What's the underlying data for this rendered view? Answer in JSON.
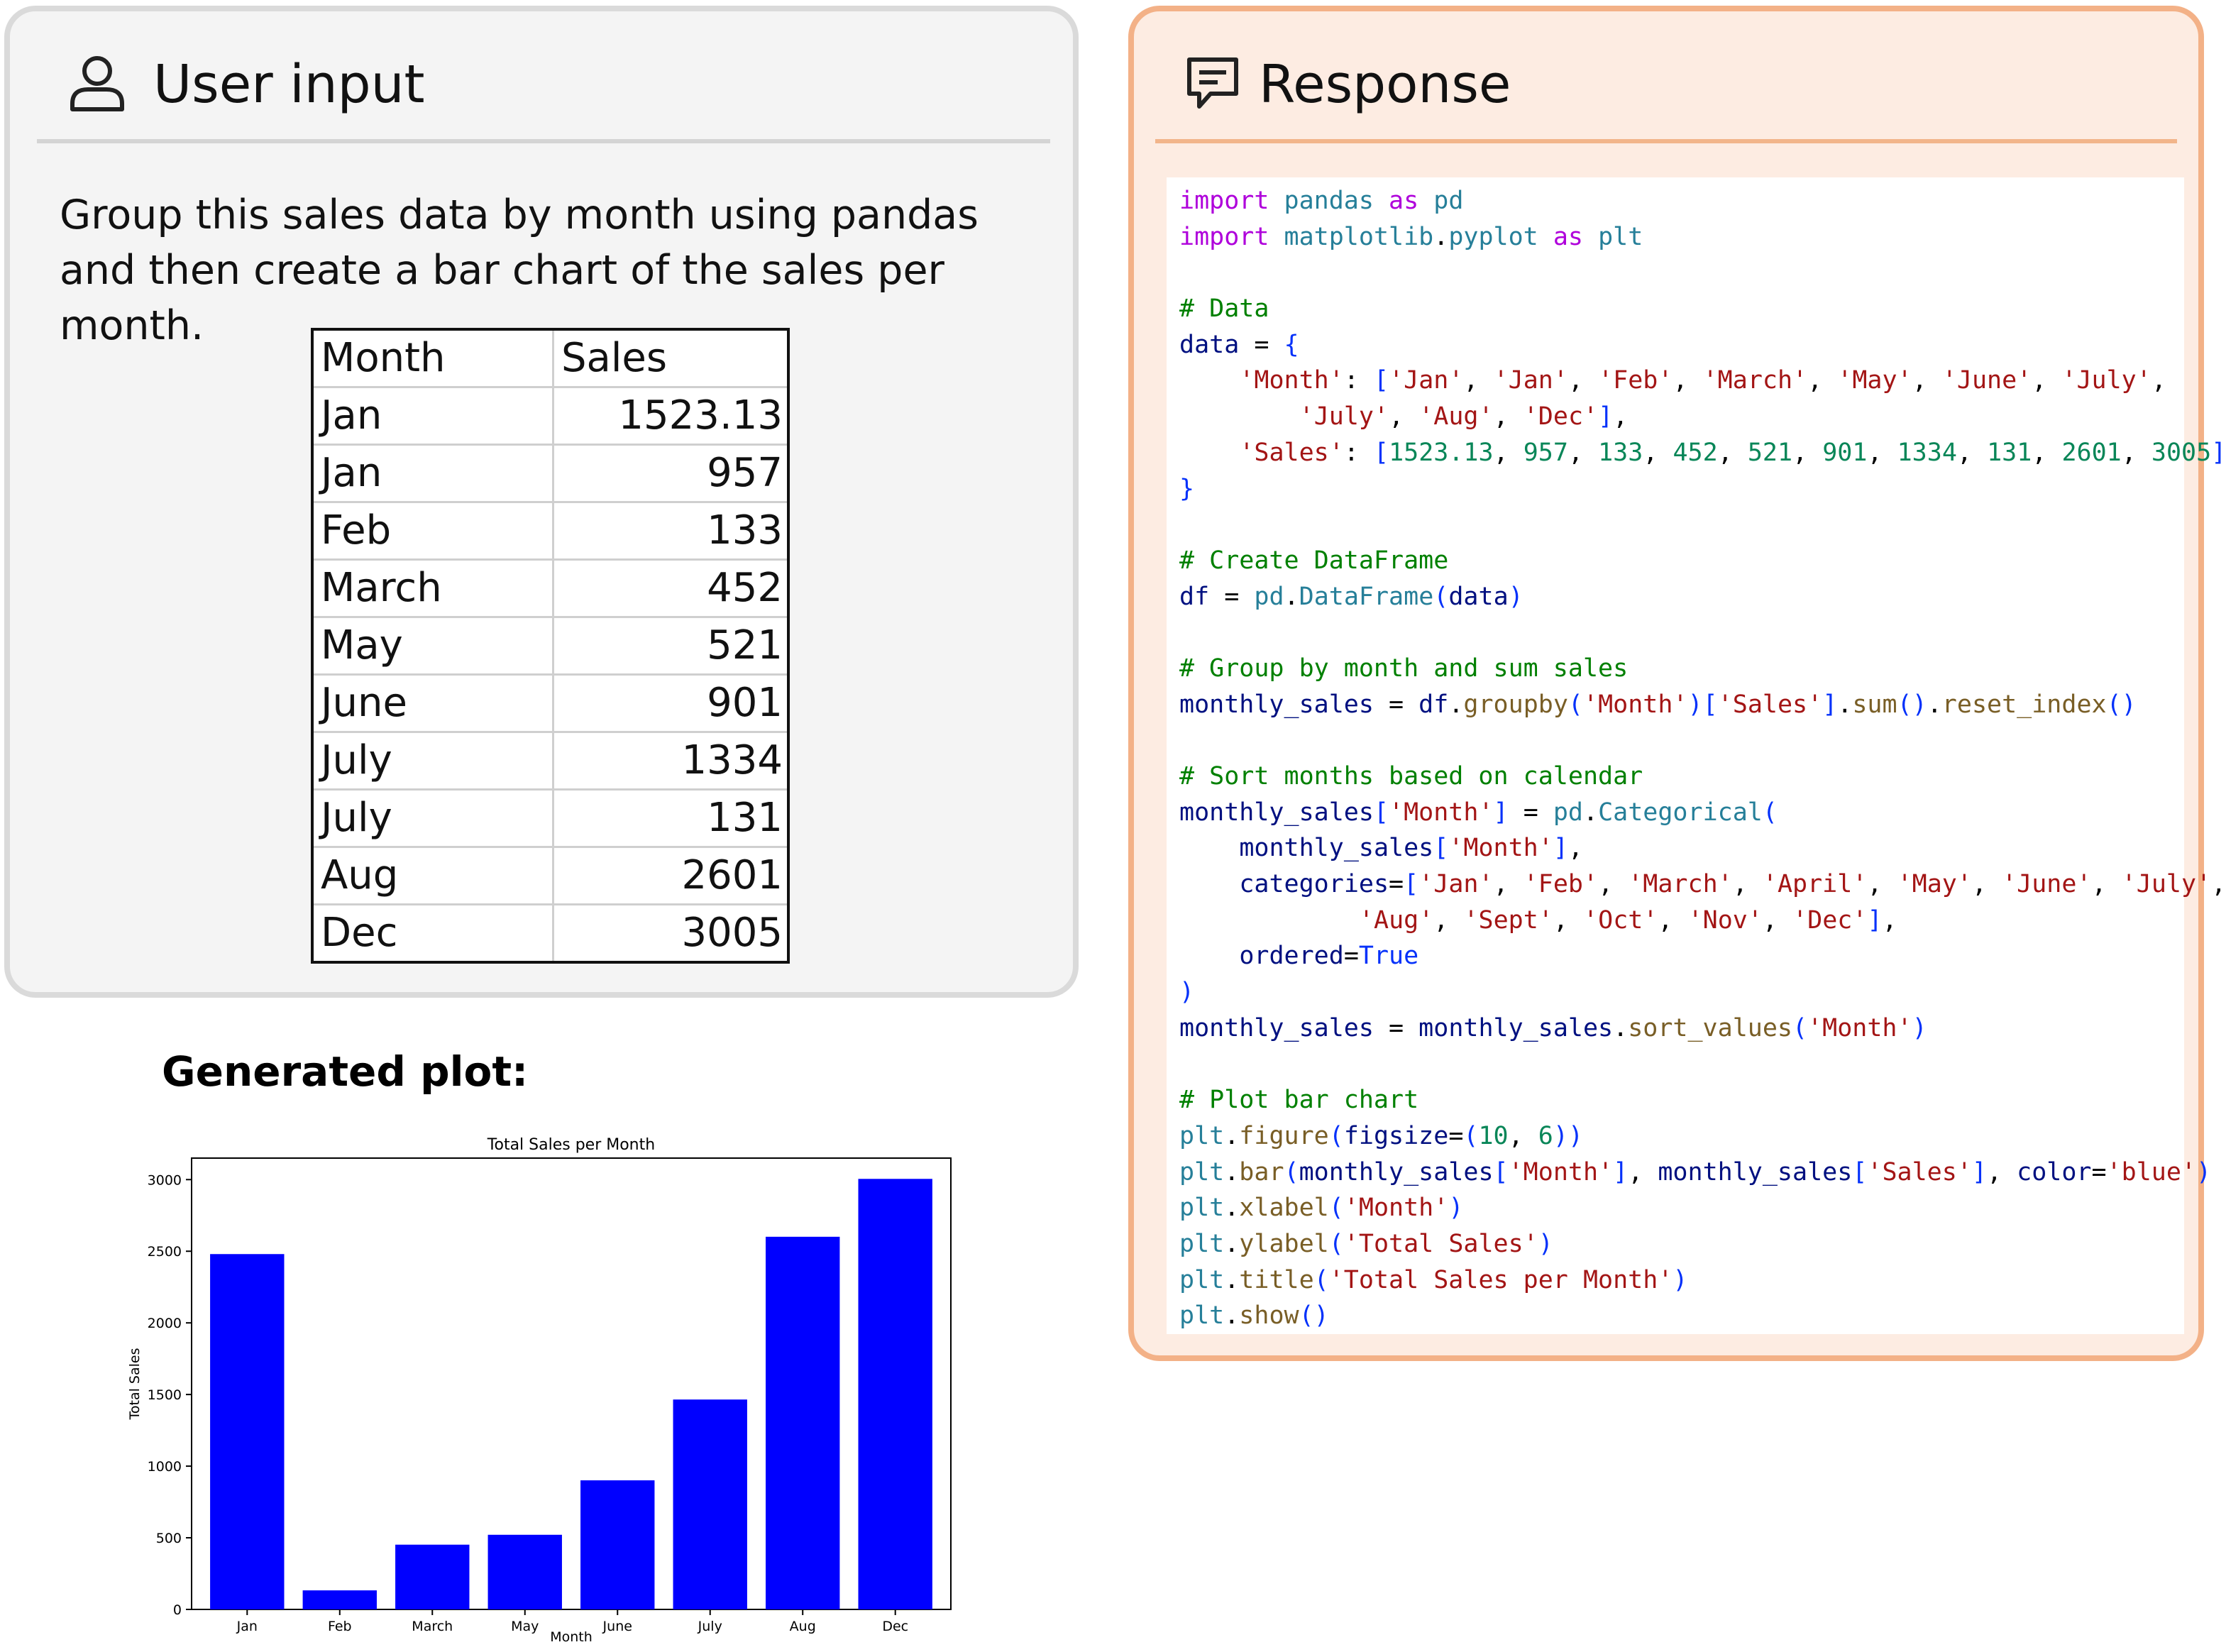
{
  "user_panel": {
    "title": "User input",
    "icon": "user-icon",
    "prompt": "Group this sales data by month using pandas and then create a bar chart of the sales per month.",
    "table": {
      "headers": [
        "Month",
        "Sales"
      ],
      "rows": [
        [
          "Jan",
          "1523.13"
        ],
        [
          "Jan",
          "957"
        ],
        [
          "Feb",
          "133"
        ],
        [
          "March",
          "452"
        ],
        [
          "May",
          "521"
        ],
        [
          "June",
          "901"
        ],
        [
          "July",
          "1334"
        ],
        [
          "July",
          "131"
        ],
        [
          "Aug",
          "2601"
        ],
        [
          "Dec",
          "3005"
        ]
      ]
    }
  },
  "plot_heading": "Generated plot:",
  "chart_data": {
    "type": "bar",
    "title": "Total Sales per Month",
    "xlabel": "Month",
    "ylabel": "Total Sales",
    "categories": [
      "Jan",
      "Feb",
      "March",
      "May",
      "June",
      "July",
      "Aug",
      "Dec"
    ],
    "values": [
      2480.13,
      133,
      452,
      521,
      901,
      1465,
      2601,
      3005
    ],
    "ylim": [
      0,
      3150
    ],
    "yticks": [
      0,
      500,
      1000,
      1500,
      2000,
      2500,
      3000
    ],
    "bar_color": "#0000ff",
    "grid": false
  },
  "response_panel": {
    "title": "Response",
    "icon": "chat-response-icon",
    "code_lines": [
      "import pandas as pd",
      "import matplotlib.pyplot as plt",
      "",
      "# Data",
      "data = {",
      "    'Month': ['Jan', 'Jan', 'Feb', 'March', 'May', 'June', 'July',",
      "        'July', 'Aug', 'Dec'],",
      "    'Sales': [1523.13, 957, 133, 452, 521, 901, 1334, 131, 2601, 3005]",
      "}",
      "",
      "# Create DataFrame",
      "df = pd.DataFrame(data)",
      "",
      "# Group by month and sum sales",
      "monthly_sales = df.groupby('Month')['Sales'].sum().reset_index()",
      "",
      "# Sort months based on calendar",
      "monthly_sales['Month'] = pd.Categorical(",
      "    monthly_sales['Month'],",
      "    categories=['Jan', 'Feb', 'March', 'April', 'May', 'June', 'July',",
      "            'Aug', 'Sept', 'Oct', 'Nov', 'Dec'],",
      "    ordered=True",
      ")",
      "monthly_sales = monthly_sales.sort_values('Month')",
      "",
      "# Plot bar chart",
      "plt.figure(figsize=(10, 6))",
      "plt.bar(monthly_sales['Month'], monthly_sales['Sales'], color='blue')",
      "plt.xlabel('Month')",
      "plt.ylabel('Total Sales')",
      "plt.title('Total Sales per Month')",
      "plt.show()"
    ]
  }
}
